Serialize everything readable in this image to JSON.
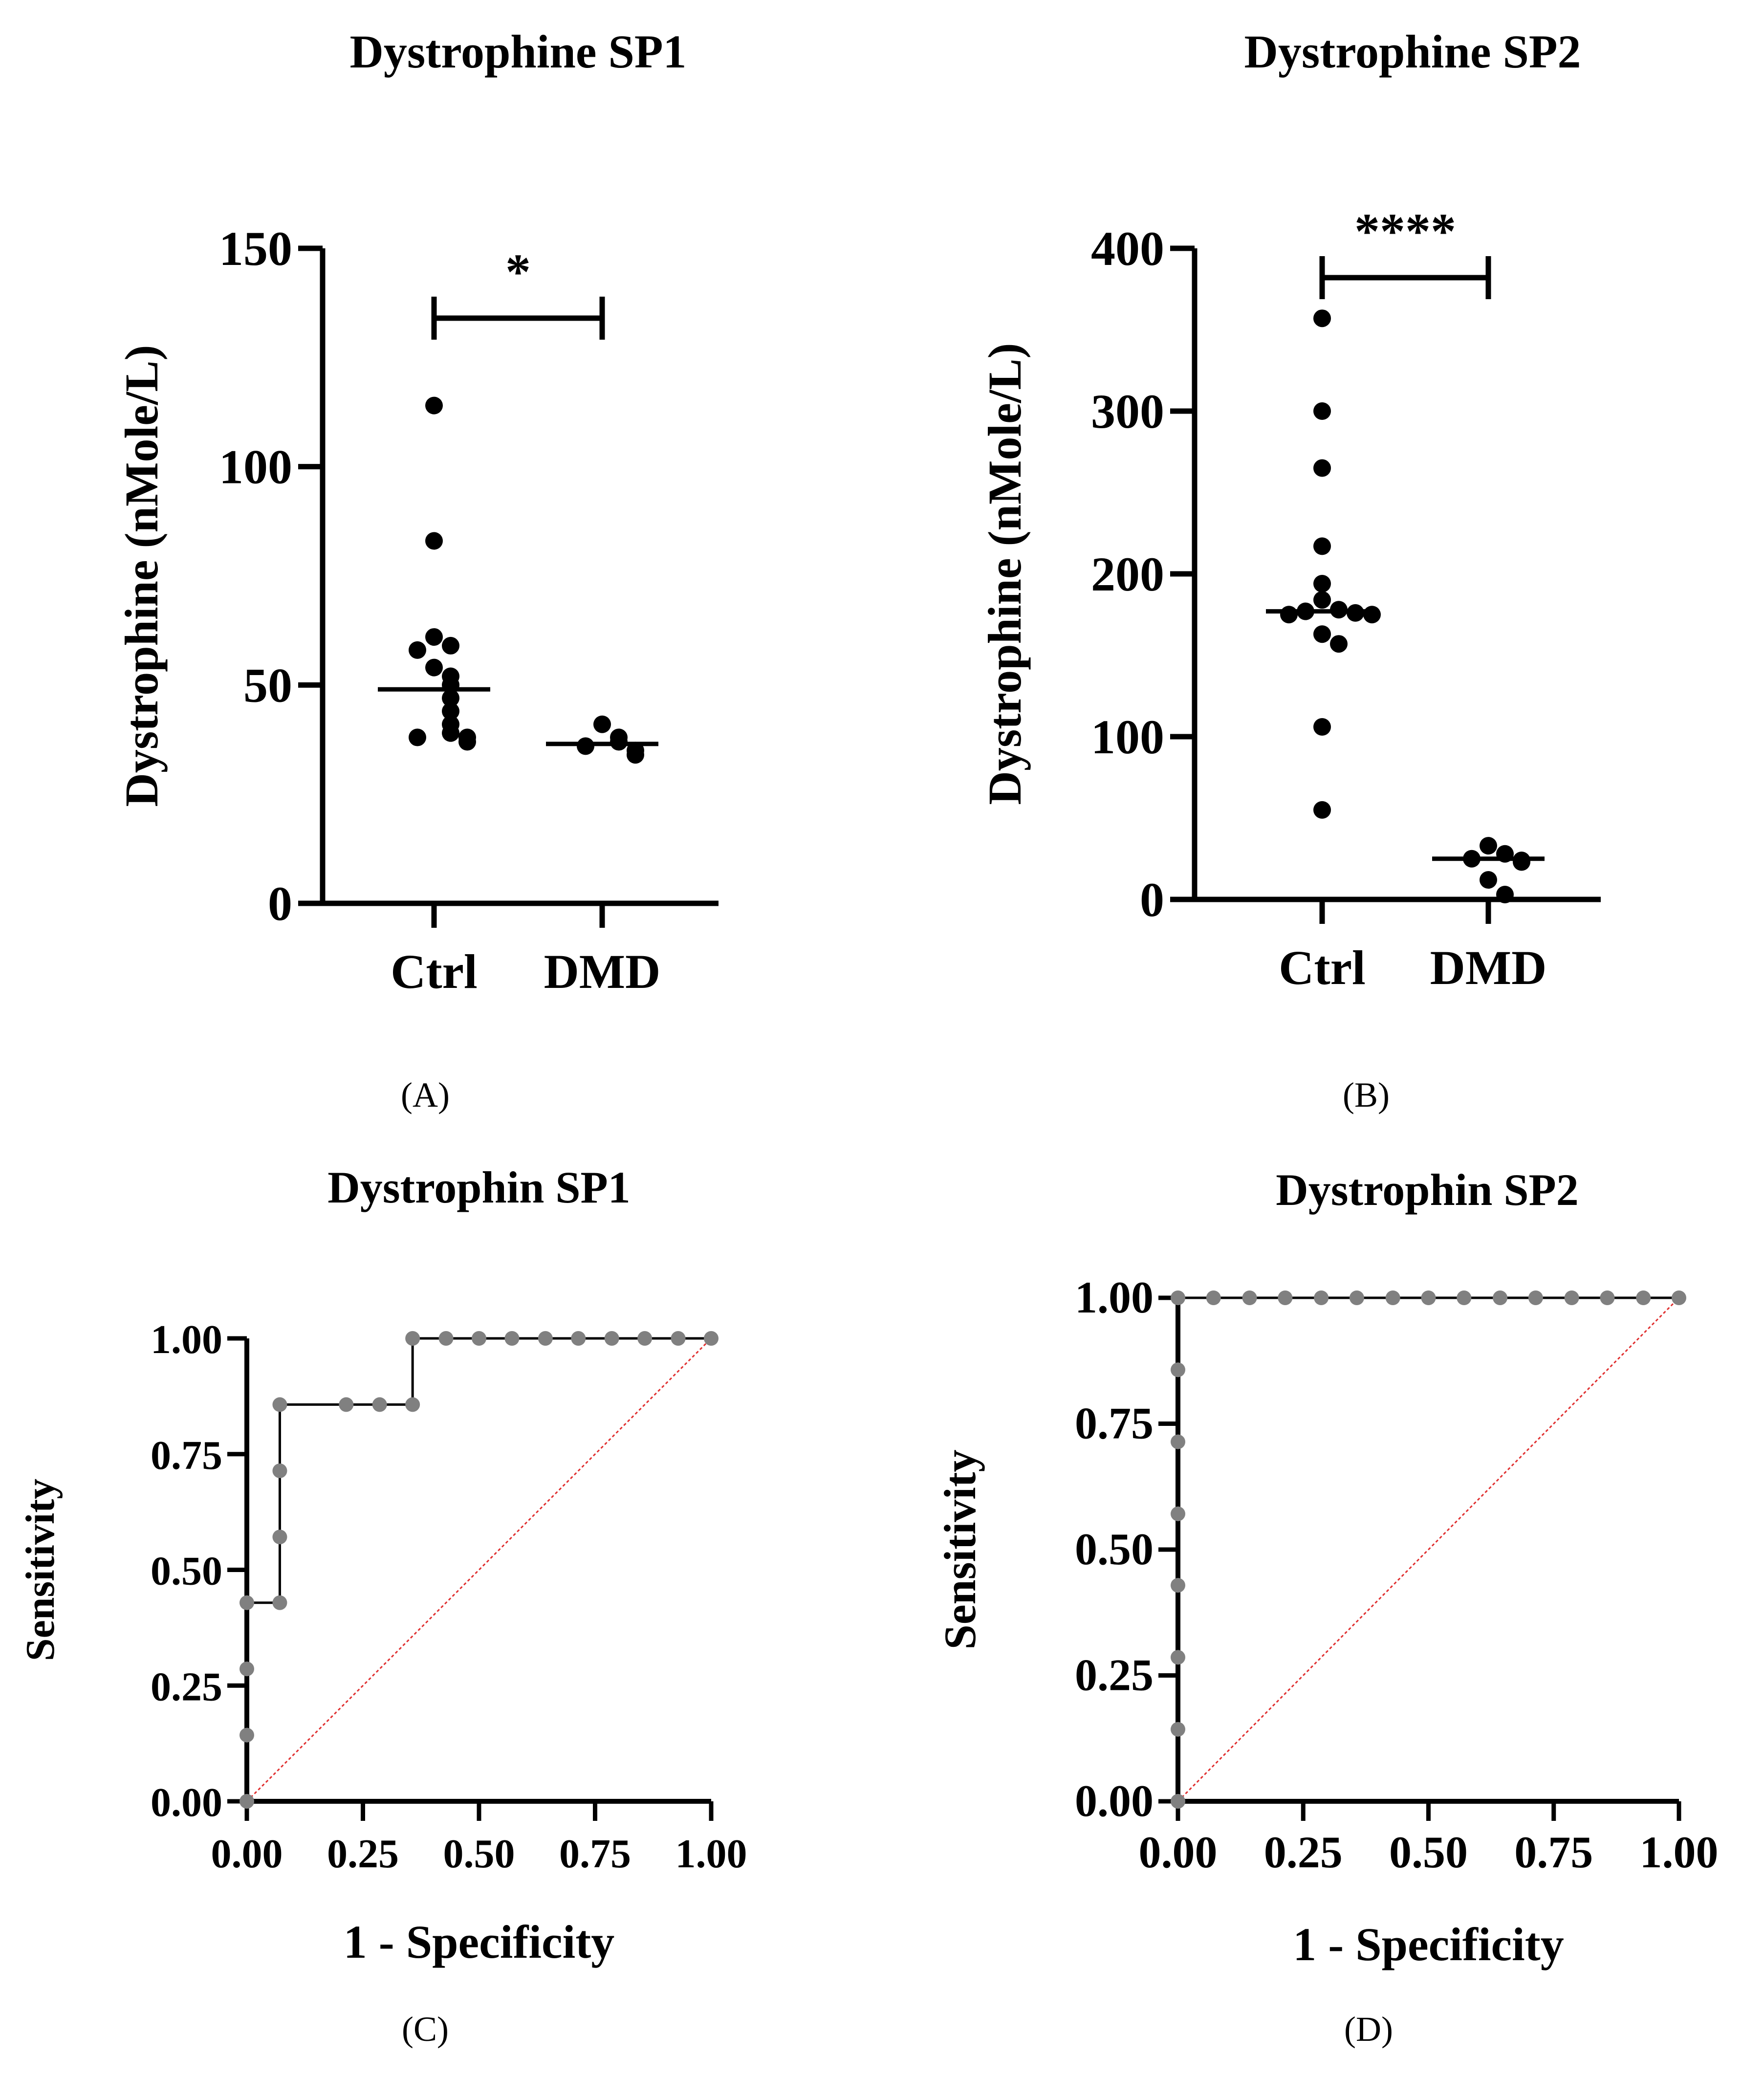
{
  "figure": {
    "panel_labels": [
      "(A)",
      "(B)",
      "(C)",
      "(D)"
    ]
  },
  "colors": {
    "ink": "#000000",
    "roc_point": "#808080",
    "reference_line": "#e03030"
  },
  "chart_data": [
    {
      "type": "scatter",
      "id": "A",
      "title": "Dystrophine SP1",
      "ylabel": "Dystrophine (nMole/L)",
      "xlabel": "",
      "ylim": [
        0,
        150
      ],
      "yticks": [
        0,
        50,
        100,
        150
      ],
      "categories": [
        "Ctrl",
        "DMD"
      ],
      "series": [
        {
          "name": "Ctrl",
          "values": [
            114,
            83,
            61,
            59,
            58,
            54,
            52,
            50,
            47,
            44,
            41,
            39,
            38,
            38,
            37
          ],
          "median": 49
        },
        {
          "name": "DMD",
          "values": [
            41,
            38,
            37,
            36,
            35,
            34
          ],
          "median": 36.5
        }
      ],
      "significance": {
        "label": "*",
        "from": "Ctrl",
        "to": "DMD",
        "y": 134
      }
    },
    {
      "type": "scatter",
      "id": "B",
      "title": "Dystrophine SP2",
      "ylabel": "Dystrophine (nMole/L)",
      "xlabel": "",
      "ylim": [
        0,
        400
      ],
      "yticks": [
        0,
        100,
        200,
        300,
        400
      ],
      "categories": [
        "Ctrl",
        "DMD"
      ],
      "series": [
        {
          "name": "Ctrl",
          "values": [
            357,
            300,
            265,
            217,
            194,
            184,
            178,
            175,
            176,
            177,
            175,
            163,
            157,
            106,
            55
          ],
          "median": 177
        },
        {
          "name": "DMD",
          "values": [
            33,
            28,
            25,
            24,
            23,
            12,
            3
          ],
          "median": 25
        }
      ],
      "significance": {
        "label": "****",
        "from": "Ctrl",
        "to": "DMD",
        "y": 382
      }
    },
    {
      "type": "line",
      "id": "C",
      "title": "Dystrophin SP1",
      "xlabel": "1 - Specificity",
      "ylabel": "Sensitivity",
      "xlim": [
        0,
        1
      ],
      "ylim": [
        0,
        1
      ],
      "xticks": [
        0.0,
        0.25,
        0.5,
        0.75,
        1.0
      ],
      "yticks": [
        0.0,
        0.25,
        0.5,
        0.75,
        1.0
      ],
      "tick_labels": [
        "0.00",
        "0.25",
        "0.50",
        "0.75",
        "1.00"
      ],
      "series": [
        {
          "name": "ROC",
          "x": [
            0.0,
            0.0,
            0.0,
            0.0,
            0.071,
            0.071,
            0.071,
            0.071,
            0.214,
            0.286,
            0.357,
            0.357,
            0.429,
            0.5,
            0.571,
            0.643,
            0.714,
            0.786,
            0.857,
            0.929,
            1.0
          ],
          "y": [
            0.0,
            0.143,
            0.286,
            0.429,
            0.429,
            0.571,
            0.714,
            0.857,
            0.857,
            0.857,
            0.857,
            1.0,
            1.0,
            1.0,
            1.0,
            1.0,
            1.0,
            1.0,
            1.0,
            1.0,
            1.0
          ]
        },
        {
          "name": "Reference",
          "x": [
            0,
            1
          ],
          "y": [
            0,
            1
          ]
        }
      ]
    },
    {
      "type": "line",
      "id": "D",
      "title": "Dystrophin SP2",
      "xlabel": "1 - Specificity",
      "ylabel": "Sensitivity",
      "xlim": [
        0,
        1
      ],
      "ylim": [
        0,
        1
      ],
      "xticks": [
        0.0,
        0.25,
        0.5,
        0.75,
        1.0
      ],
      "yticks": [
        0.0,
        0.25,
        0.5,
        0.75,
        1.0
      ],
      "tick_labels": [
        "0.00",
        "0.25",
        "0.50",
        "0.75",
        "1.00"
      ],
      "series": [
        {
          "name": "ROC",
          "x": [
            0.0,
            0.0,
            0.0,
            0.0,
            0.0,
            0.0,
            0.0,
            0.0,
            0.071,
            0.143,
            0.214,
            0.286,
            0.357,
            0.429,
            0.5,
            0.571,
            0.643,
            0.714,
            0.786,
            0.857,
            0.929,
            1.0
          ],
          "y": [
            0.0,
            0.143,
            0.286,
            0.429,
            0.571,
            0.714,
            0.857,
            1.0,
            1.0,
            1.0,
            1.0,
            1.0,
            1.0,
            1.0,
            1.0,
            1.0,
            1.0,
            1.0,
            1.0,
            1.0,
            1.0,
            1.0
          ]
        },
        {
          "name": "Reference",
          "x": [
            0,
            1
          ],
          "y": [
            0,
            1
          ]
        }
      ]
    }
  ]
}
